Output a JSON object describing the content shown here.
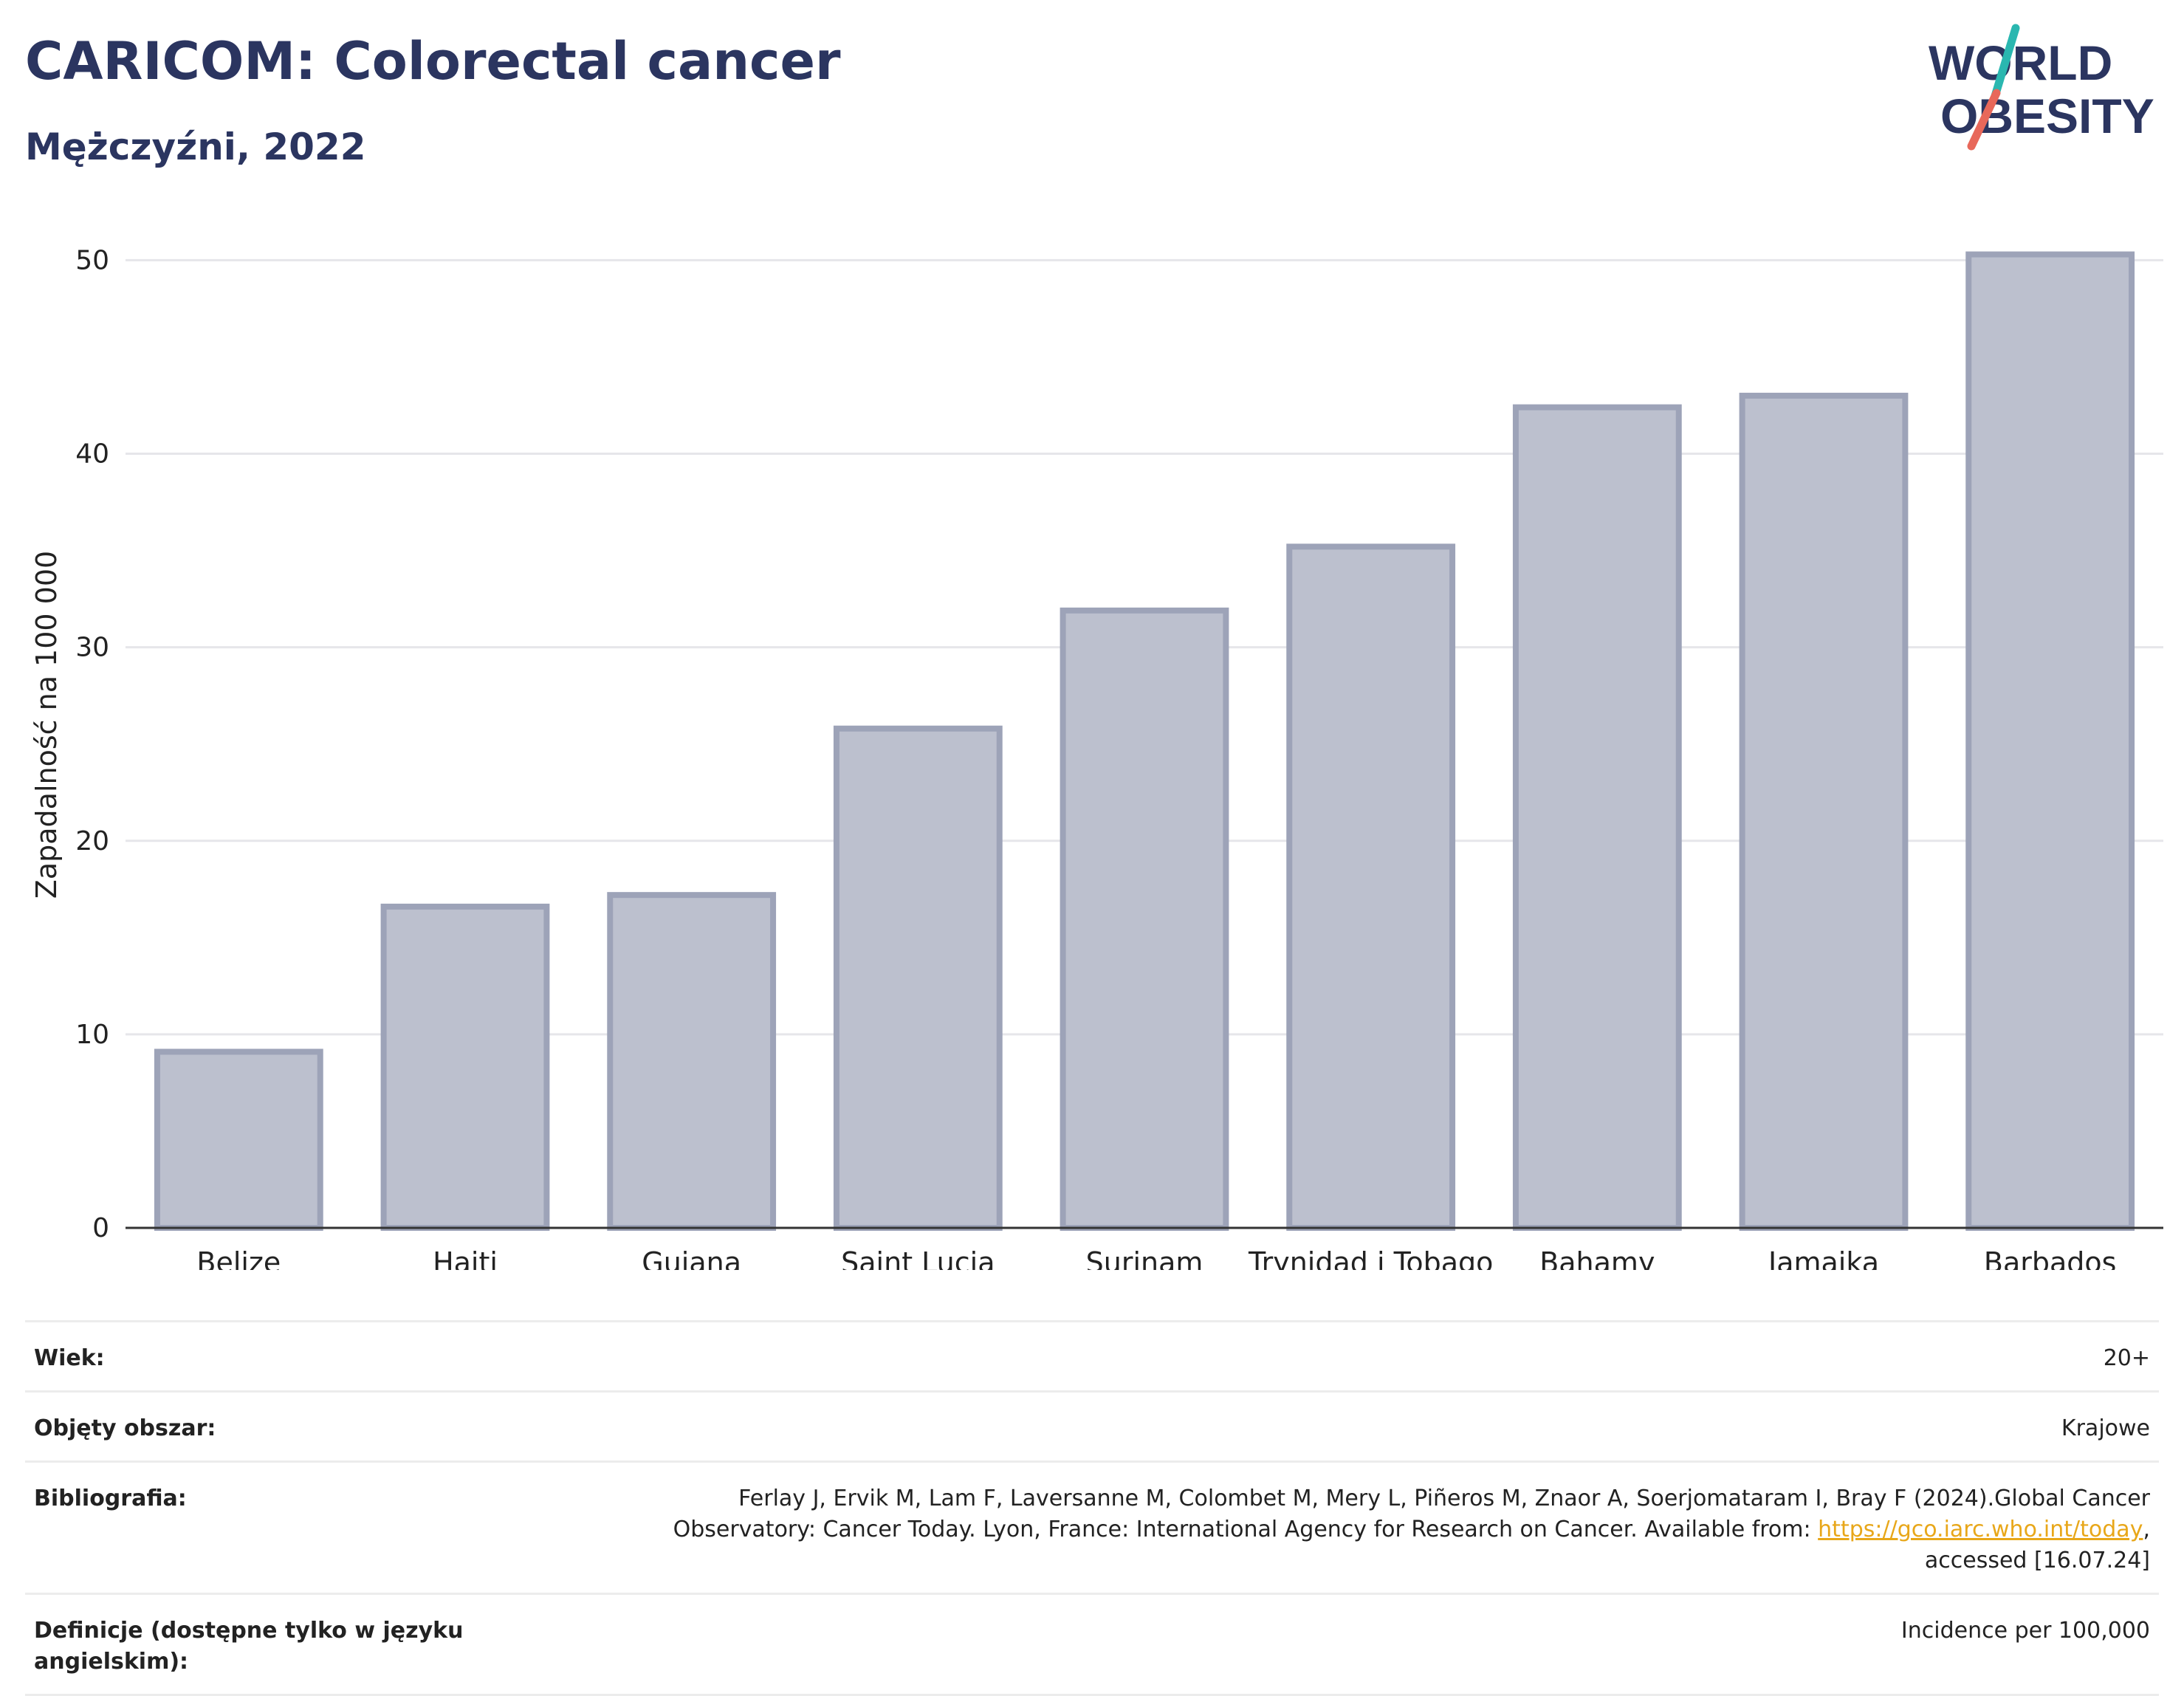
{
  "header": {
    "title": "CARICOM: Colorectal cancer",
    "subtitle": "Mężczyźni, 2022"
  },
  "logo": {
    "line1": "WORLD",
    "line2": "OBESITY",
    "accent_teal": "#2ab7b0",
    "accent_red": "#e8685a",
    "text_color": "#2b3560"
  },
  "chart_data": {
    "type": "bar",
    "categories": [
      "Belize",
      "Haiti",
      "Gujana",
      "Saint Lucia",
      "Surinam",
      "Trynidad i Tobago",
      "Bahamy",
      "Jamajka",
      "Barbados"
    ],
    "values": [
      9.1,
      16.6,
      17.2,
      25.8,
      31.9,
      35.2,
      42.4,
      43.0,
      50.3
    ],
    "ylabel": "Zapadalność na 100 000",
    "ylim": [
      0,
      52
    ],
    "yticks": [
      0,
      10,
      20,
      30,
      40,
      50
    ],
    "grid": true,
    "bar_fill": "#bcc0ce",
    "bar_stroke": "#9da3b8"
  },
  "info": {
    "age_label": "Wiek:",
    "age_value": "20+",
    "area_label": "Objęty obszar:",
    "area_value": "Krajowe",
    "biblio_label": "Bibliografia:",
    "biblio_text1": "Ferlay J, Ervik M, Lam F, Laversanne M, Colombet M, Mery L, Piñeros M, Znaor A, Soerjomataram I, Bray F (2024).Global Cancer Observatory: Cancer Today. Lyon, France: International Agency for Research on Cancer. Available from: ",
    "biblio_link": "https://gco.iarc.who.int/today",
    "biblio_text2": ", accessed [16.07.24]",
    "def_label": "Definicje (dostępne tylko w języku angielskim):",
    "def_value": "Incidence per 100,000"
  }
}
